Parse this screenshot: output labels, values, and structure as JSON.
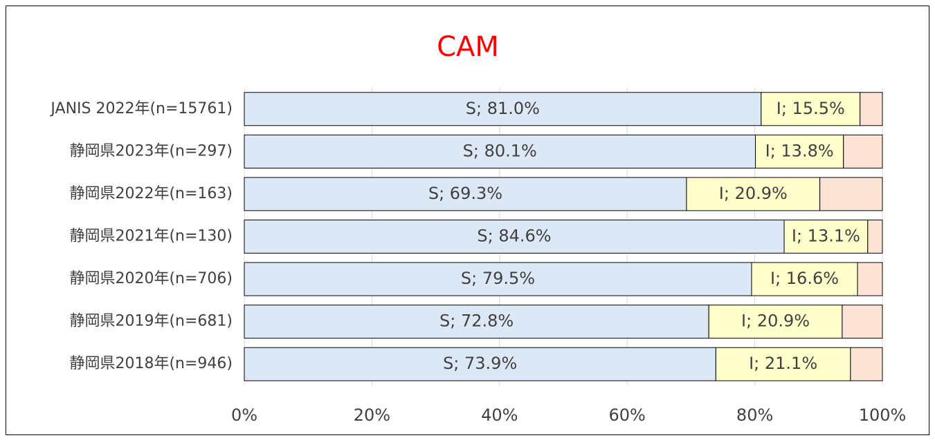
{
  "chart_data": {
    "type": "stacked-bar-horizontal",
    "title": "CAM",
    "categories": [
      "JANIS 2022年(n=15761)",
      "静岡県2023年(n=297)",
      "静岡県2022年(n=163)",
      "静岡県2021年(n=130)",
      "静岡県2020年(n=706)",
      "静岡県2019年(n=681)",
      "静岡県2018年(n=946)"
    ],
    "series": [
      {
        "color": "#dde8f6",
        "values": [
          81.0,
          80.1,
          69.3,
          84.6,
          79.5,
          72.8,
          73.9
        ],
        "value_labels": [
          "S; 81.0%",
          "S; 80.1%",
          "S; 69.3%",
          "S; 84.6%",
          "S; 79.5%",
          "S; 72.8%",
          "S; 73.9%"
        ]
      },
      {
        "color": "#ffffcc",
        "values": [
          15.5,
          13.8,
          20.9,
          13.1,
          16.6,
          20.9,
          21.1
        ],
        "value_labels": [
          "I; 15.5%",
          "I; 13.8%",
          "I; 20.9%",
          "I; 13.1%",
          "I; 16.6%",
          "I; 20.9%",
          "I; 21.1%"
        ]
      },
      {
        "color": "#fde2d6",
        "values": [
          3.5,
          6.1,
          9.8,
          2.3,
          3.9,
          6.3,
          5.0
        ]
      }
    ],
    "xlim": [
      0,
      100
    ],
    "xticks": [
      {
        "value": 0,
        "label": "0%"
      },
      {
        "value": 20,
        "label": "20%"
      },
      {
        "value": 40,
        "label": "40%"
      },
      {
        "value": 60,
        "label": "60%"
      },
      {
        "value": 80,
        "label": "80%"
      },
      {
        "value": 100,
        "label": "100%"
      }
    ],
    "grid": true,
    "title_color": "#ff0000"
  }
}
